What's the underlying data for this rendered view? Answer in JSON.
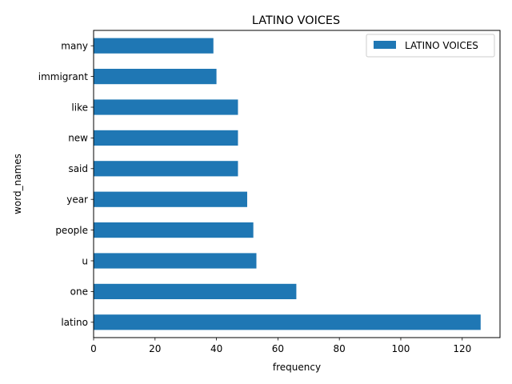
{
  "chart_data": {
    "type": "bar",
    "orientation": "horizontal",
    "title": "LATINO VOICES",
    "xlabel": "frequency",
    "ylabel": "word_names",
    "categories": [
      "latino",
      "one",
      "u",
      "people",
      "year",
      "said",
      "new",
      "like",
      "immigrant",
      "many"
    ],
    "series": [
      {
        "name": "LATINO VOICES",
        "values": [
          126,
          66,
          53,
          52,
          50,
          47,
          47,
          47,
          40,
          39
        ],
        "color": "#1f77b4"
      }
    ],
    "xlim": [
      0,
      132.3
    ],
    "xticks": [
      0,
      20,
      40,
      60,
      80,
      100,
      120
    ],
    "grid": false,
    "legend": "top-right"
  }
}
